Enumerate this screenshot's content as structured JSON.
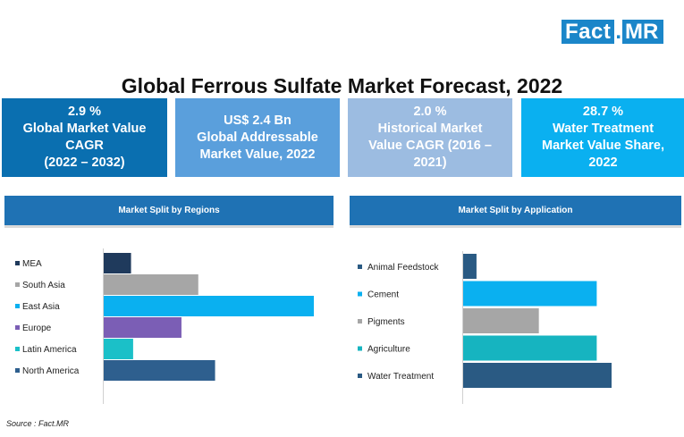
{
  "logo": {
    "fact": "Fact",
    "dot": ".",
    "mr": "MR"
  },
  "title": "Global Ferrous Sulfate Market Forecast, 2022",
  "stats": [
    {
      "lines": [
        "2.9 %",
        "Global Market Value",
        "CAGR",
        "(2022 – 2032)"
      ]
    },
    {
      "lines": [
        "US$ 2.4 Bn",
        "Global Addressable",
        "Market Value, 2022"
      ]
    },
    {
      "lines": [
        "2.0 %",
        "Historical Market",
        "Value CAGR (2016 –",
        "2021)"
      ]
    },
    {
      "lines": [
        "28.7 %",
        "Water Treatment",
        "Market Value Share,",
        "2022"
      ]
    }
  ],
  "regions_header": "Market Split by Regions",
  "application_header": "Market Split by Application",
  "source": "Source : Fact.MR",
  "chart_data": [
    {
      "type": "bar",
      "orientation": "horizontal",
      "title": "Market Split by Regions",
      "categories": [
        "MEA",
        "South Asia",
        "East Asia",
        "Europe",
        "Latin America",
        "North America"
      ],
      "values": [
        13,
        45,
        100,
        37,
        14,
        53
      ],
      "colors": [
        "#1f3a5c",
        "#a6a6a6",
        "#0ab0f0",
        "#7b5eb5",
        "#1bc0c8",
        "#2e5f8e"
      ],
      "axis_labels_shown": false,
      "legend_placement": "left"
    },
    {
      "type": "bar",
      "orientation": "horizontal",
      "title": "Market Split by Application",
      "categories": [
        "Animal Feedstock",
        "Cement",
        "Pigments",
        "Agriculture",
        "Water Treatment"
      ],
      "values": [
        9,
        90,
        51,
        90,
        100
      ],
      "colors": [
        "#2a5a83",
        "#0ab0f0",
        "#a6a6a6",
        "#16b4c0",
        "#2a5a83"
      ],
      "axis_labels_shown": false,
      "legend_placement": "left"
    }
  ]
}
